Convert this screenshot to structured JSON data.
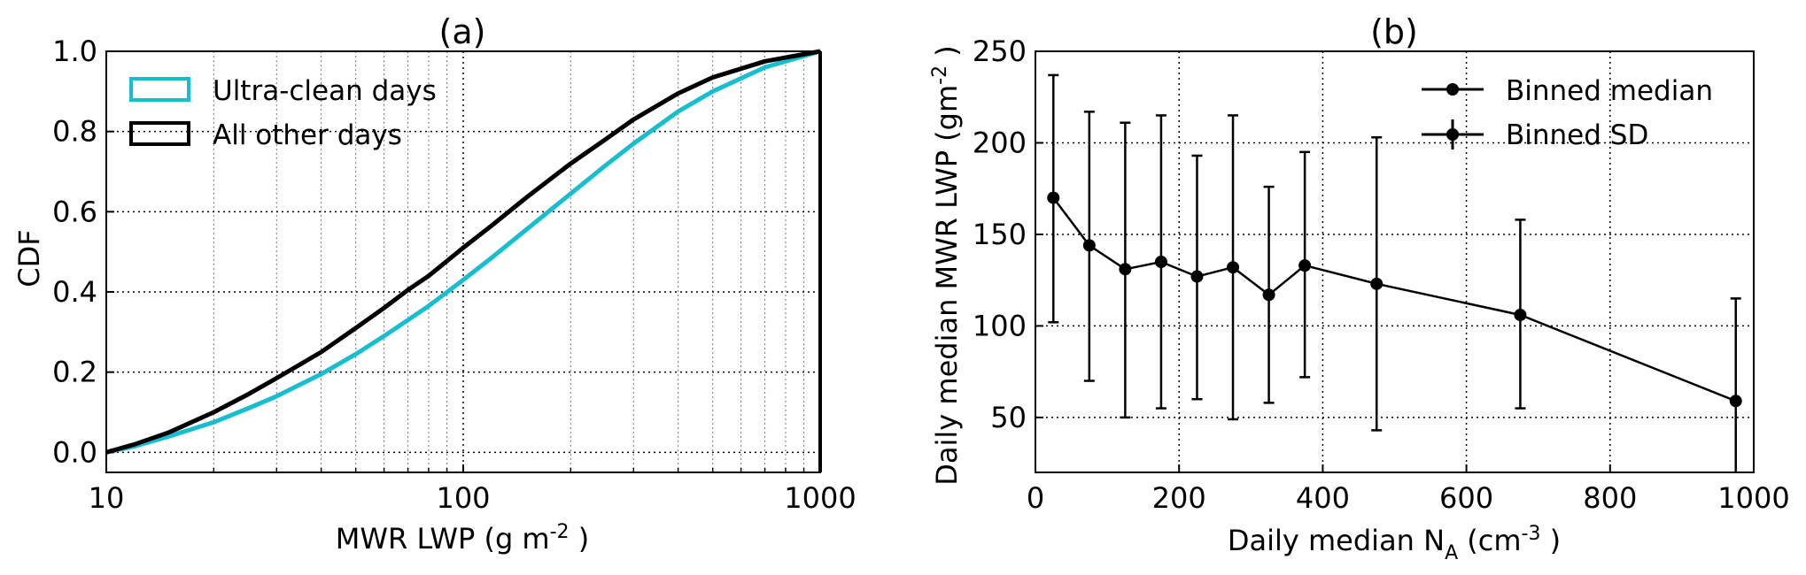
{
  "chart_data": [
    {
      "type": "line",
      "title": "(a)",
      "xlabel": {
        "text": "MWR LWP (g m",
        "sup": "-2",
        "tail": " )"
      },
      "ylabel": "CDF",
      "xscale": "log",
      "xlim": [
        10,
        1000
      ],
      "ylim": [
        -0.05,
        1.0
      ],
      "xticks": [
        10,
        100,
        1000
      ],
      "xtick_labels": [
        "10",
        "100",
        "1000"
      ],
      "yticks": [
        0.0,
        0.2,
        0.4,
        0.6,
        0.8,
        1.0
      ],
      "ytick_labels": [
        "0.0",
        "0.2",
        "0.4",
        "0.6",
        "0.8",
        "1.0"
      ],
      "grid": true,
      "legend_position": "top-left",
      "series": [
        {
          "name": "Ultra-clean days",
          "color": "#17becf",
          "x": [
            10,
            12,
            15,
            20,
            25,
            30,
            40,
            50,
            60,
            70,
            80,
            100,
            120,
            150,
            200,
            250,
            300,
            400,
            500,
            700,
            1000
          ],
          "y": [
            0.0,
            0.015,
            0.04,
            0.075,
            0.11,
            0.14,
            0.195,
            0.245,
            0.29,
            0.33,
            0.365,
            0.43,
            0.485,
            0.555,
            0.645,
            0.715,
            0.77,
            0.85,
            0.9,
            0.96,
            1.0
          ]
        },
        {
          "name": "All other days",
          "color": "#000000",
          "x": [
            10,
            12,
            15,
            20,
            25,
            30,
            40,
            50,
            60,
            70,
            80,
            100,
            120,
            150,
            200,
            250,
            300,
            400,
            500,
            700,
            1000
          ],
          "y": [
            0.0,
            0.02,
            0.05,
            0.1,
            0.145,
            0.185,
            0.25,
            0.31,
            0.36,
            0.405,
            0.44,
            0.51,
            0.565,
            0.635,
            0.72,
            0.78,
            0.83,
            0.895,
            0.935,
            0.975,
            1.0
          ]
        }
      ]
    },
    {
      "type": "line",
      "title": "(b)",
      "xlabel": {
        "text": "Daily median N",
        "sub": "A",
        "tail": "  (cm",
        "sup": "-3",
        "tail2": " )"
      },
      "ylabel": {
        "text": "Daily median MWR LWP (gm",
        "sup": "-2",
        "tail": " )"
      },
      "xlim": [
        0,
        1000
      ],
      "ylim": [
        20,
        250
      ],
      "xticks": [
        0,
        200,
        400,
        600,
        800,
        1000
      ],
      "xtick_labels": [
        "0",
        "200",
        "400",
        "600",
        "800",
        "1000"
      ],
      "yticks": [
        50,
        100,
        150,
        200,
        250
      ],
      "ytick_labels": [
        "50",
        "100",
        "150",
        "200",
        "250"
      ],
      "grid": true,
      "legend_position": "top-right",
      "legend": [
        "Binned median",
        "Binned SD"
      ],
      "series": [
        {
          "name": "Binned median",
          "color": "#000000",
          "x": [
            25,
            75,
            125,
            175,
            225,
            275,
            325,
            375,
            475,
            675,
            975
          ],
          "y": [
            170,
            144,
            131,
            135,
            127,
            132,
            117,
            133,
            123,
            106,
            59
          ],
          "sd_low": [
            102,
            70,
            50,
            55,
            60,
            49,
            58,
            72,
            43,
            55,
            20
          ],
          "sd_high": [
            237,
            217,
            211,
            215,
            193,
            215,
            176,
            195,
            203,
            158,
            115
          ]
        }
      ]
    }
  ]
}
